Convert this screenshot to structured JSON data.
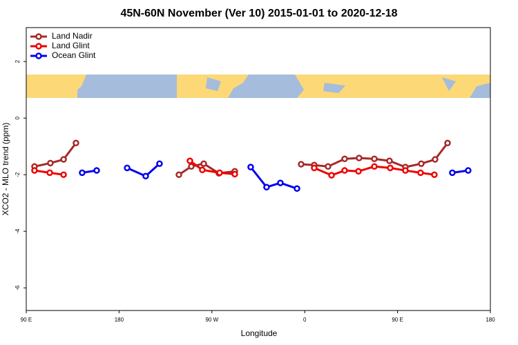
{
  "chart_data": {
    "type": "line",
    "title": "45N-60N November (Ver 10)   2015-01-01 to 2020-12-18",
    "x_label": "Longitude",
    "y_label": "XCO2 - MLO trend (ppm)",
    "xlim": [
      90,
      540
    ],
    "ylim": [
      -6.8,
      3.2
    ],
    "xticks": [
      {
        "value": 90,
        "label": "90 E"
      },
      {
        "value": 180,
        "label": "180"
      },
      {
        "value": 270,
        "label": "90 W"
      },
      {
        "value": 360,
        "label": "0"
      },
      {
        "value": 450,
        "label": "90 E"
      },
      {
        "value": 540,
        "label": "180"
      }
    ],
    "yticks": [
      2,
      0,
      -2,
      -4,
      -6
    ],
    "legend": "top-left",
    "series": [
      {
        "name": "Land Nadir",
        "color": "#a52a2a",
        "x": [
          98,
          113.4,
          126.2,
          138.2,
          null,
          238,
          250,
          262.1,
          276.8,
          292.2,
          null,
          356.5,
          369.2,
          382.6,
          398.7,
          412.7,
          427.5,
          442.2,
          457.6,
          473,
          486.4,
          498.5
        ],
        "values": [
          -1.71,
          -1.59,
          -1.46,
          -0.88,
          null,
          -2.0,
          -1.71,
          -1.61,
          -1.95,
          -1.88,
          null,
          -1.63,
          -1.66,
          -1.71,
          -1.44,
          -1.41,
          -1.44,
          -1.51,
          -1.73,
          -1.61,
          -1.46,
          -0.88
        ]
      },
      {
        "name": "Land Glint",
        "color": "#ee0000",
        "x": [
          98,
          112.8,
          126.2,
          null,
          248.7,
          260.7,
          277.5,
          292.2,
          null,
          369.2,
          386,
          398.7,
          412.1,
          427.5,
          442.9,
          457.6,
          472.3,
          485.7
        ],
        "values": [
          -1.85,
          -1.93,
          -2.0,
          null,
          -1.51,
          -1.83,
          -1.93,
          -1.98,
          null,
          -1.76,
          -2.02,
          -1.85,
          -1.88,
          -1.71,
          -1.76,
          -1.85,
          -1.93,
          -2.0
        ]
      },
      {
        "name": "Ocean Glint",
        "color": "#0000ee",
        "x": [
          144.2,
          158.3,
          null,
          187.8,
          205.8,
          219.2,
          null,
          307.6,
          323,
          336.4,
          352.5,
          null,
          503.1,
          518.5
        ],
        "values": [
          -1.93,
          -1.85,
          null,
          -1.76,
          -2.05,
          -1.61,
          null,
          -1.73,
          -2.44,
          -2.29,
          -2.49,
          null,
          -1.93,
          -1.85
        ]
      }
    ]
  }
}
